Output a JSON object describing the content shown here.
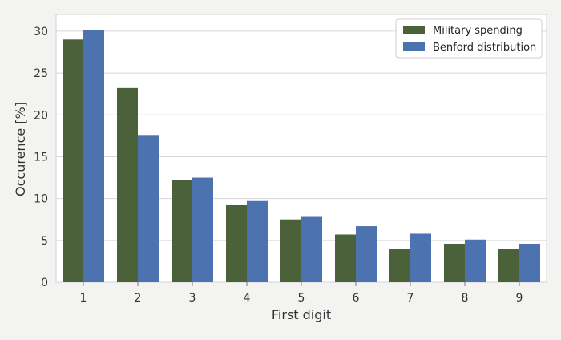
{
  "chart_data": {
    "type": "bar",
    "title": "",
    "xlabel": "First digit",
    "ylabel": "Occurence [%]",
    "categories": [
      "1",
      "2",
      "3",
      "4",
      "5",
      "6",
      "7",
      "8",
      "9"
    ],
    "ylim": [
      0,
      32
    ],
    "yticks": [
      "0",
      "5",
      "10",
      "15",
      "20",
      "25",
      "30"
    ],
    "grid": true,
    "legend_position": "top-right",
    "series": [
      {
        "name": "Military spending",
        "color": "#4a6139",
        "values": [
          29.0,
          23.2,
          12.2,
          9.2,
          7.5,
          5.7,
          4.0,
          4.6,
          4.0
        ]
      },
      {
        "name": "Benford distribution",
        "color": "#4c72b0",
        "values": [
          30.1,
          17.6,
          12.5,
          9.7,
          7.9,
          6.7,
          5.8,
          5.1,
          4.6
        ]
      }
    ]
  }
}
